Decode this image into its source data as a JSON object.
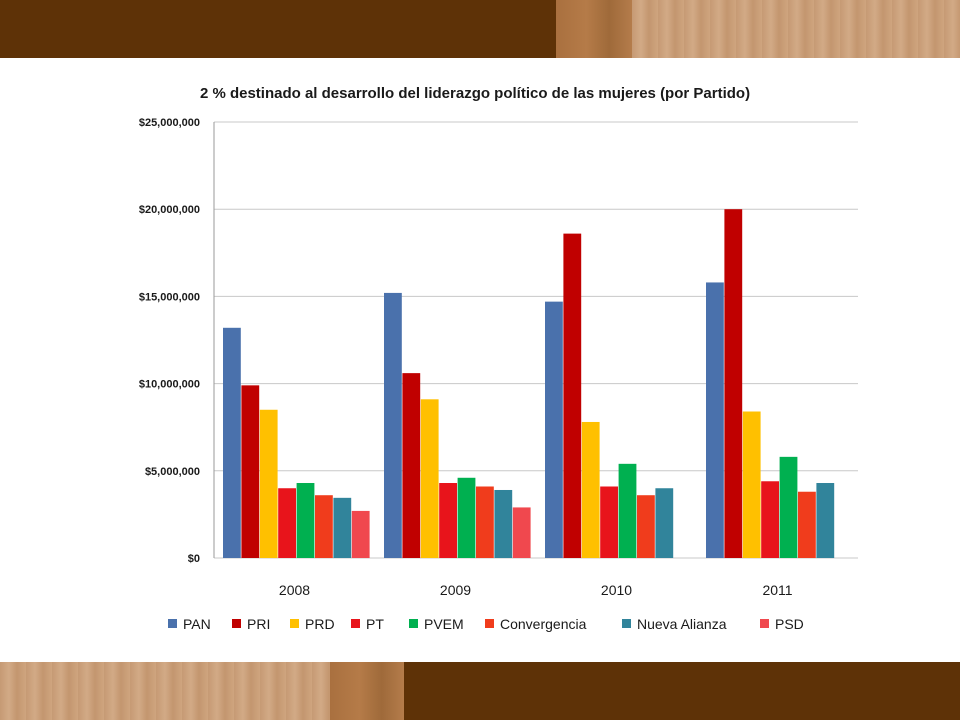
{
  "chart_data": {
    "type": "bar",
    "title": "2 % destinado al desarrollo del liderazgo político de las mujeres (por Partido)",
    "xlabel": "",
    "ylabel": "",
    "categories": [
      "2008",
      "2009",
      "2010",
      "2011"
    ],
    "ylim": [
      0,
      25000000
    ],
    "yticks": [
      0,
      5000000,
      10000000,
      15000000,
      20000000,
      25000000
    ],
    "ytick_labels": [
      "$0",
      "$5,000,000",
      "$10,000,000",
      "$15,000,000",
      "$20,000,000",
      "$25,000,000"
    ],
    "grid": true,
    "legend_position": "bottom",
    "series": [
      {
        "name": "PAN",
        "color": "#4a71ac",
        "values": [
          13200000,
          15200000,
          14700000,
          15800000
        ]
      },
      {
        "name": "PRI",
        "color": "#c00000",
        "values": [
          9900000,
          10600000,
          18600000,
          20000000
        ]
      },
      {
        "name": "PRD",
        "color": "#ffc000",
        "values": [
          8500000,
          9100000,
          7800000,
          8400000
        ]
      },
      {
        "name": "PT",
        "color": "#e8141b",
        "values": [
          4000000,
          4300000,
          4100000,
          4400000
        ]
      },
      {
        "name": "PVEM",
        "color": "#00b050",
        "values": [
          4300000,
          4600000,
          5400000,
          5800000
        ]
      },
      {
        "name": "Convergencia",
        "color": "#f03c1c",
        "values": [
          3600000,
          4100000,
          3600000,
          3800000
        ]
      },
      {
        "name": "Nueva Alianza",
        "color": "#31849b",
        "values": [
          3450000,
          3900000,
          4000000,
          4300000
        ]
      },
      {
        "name": "PSD",
        "color": "#f0484e",
        "values": [
          2700000,
          2900000,
          null,
          null
        ]
      }
    ]
  }
}
